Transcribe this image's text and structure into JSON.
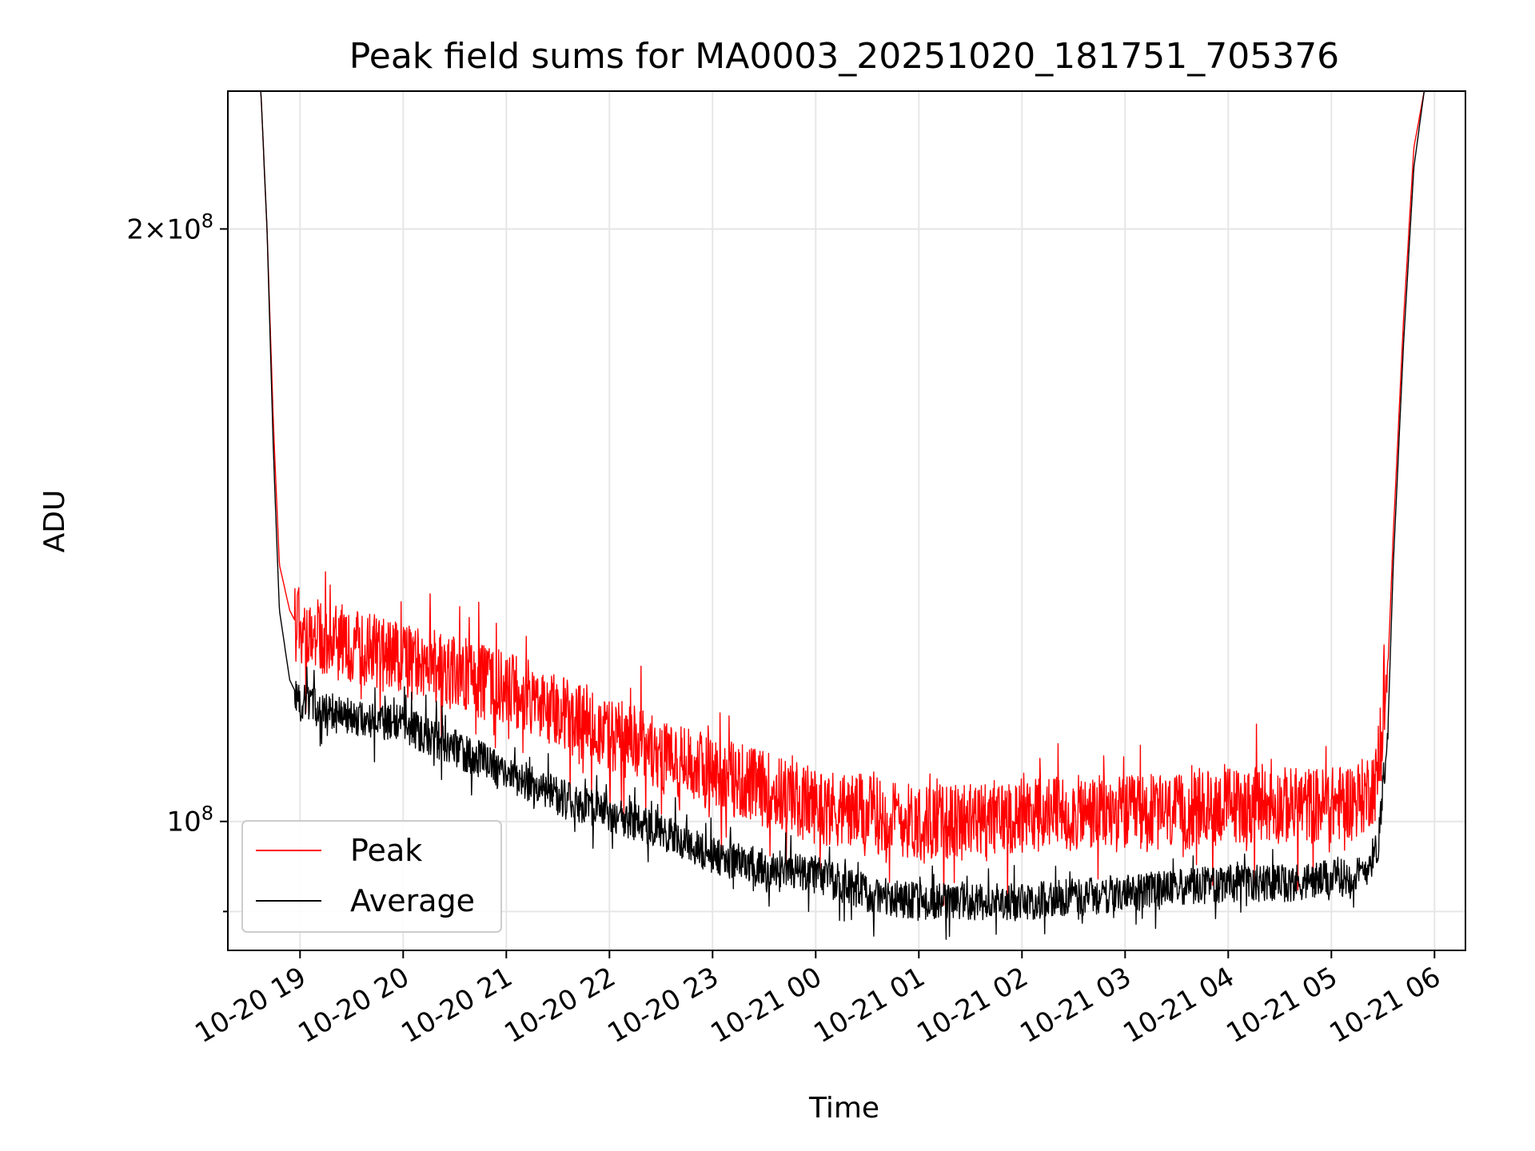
{
  "chart_data": {
    "type": "line",
    "title": "Peak field sums for MA0003_20251020_181751_705376",
    "xlabel": "Time",
    "ylabel": "ADU",
    "yscale": "log",
    "ylim": [
      86000000,
      235000000
    ],
    "xlim_hours": [
      18.3,
      30.3
    ],
    "x_ticks": [
      {
        "hour": 19,
        "label": "10-20 19"
      },
      {
        "hour": 20,
        "label": "10-20 20"
      },
      {
        "hour": 21,
        "label": "10-20 21"
      },
      {
        "hour": 22,
        "label": "10-20 22"
      },
      {
        "hour": 23,
        "label": "10-20 23"
      },
      {
        "hour": 24,
        "label": "10-21 00"
      },
      {
        "hour": 25,
        "label": "10-21 01"
      },
      {
        "hour": 26,
        "label": "10-21 02"
      },
      {
        "hour": 27,
        "label": "10-21 03"
      },
      {
        "hour": 28,
        "label": "10-21 04"
      },
      {
        "hour": 29,
        "label": "10-21 05"
      },
      {
        "hour": 30,
        "label": "10-21 06"
      }
    ],
    "y_ticks": [
      {
        "value": 100000000,
        "base": "10",
        "exp": "8",
        "mantissa": ""
      },
      {
        "value": 200000000,
        "base": "10",
        "exp": "8",
        "mantissa": "2×"
      }
    ],
    "y_minor_ticks": [
      90000000
    ],
    "legend": {
      "location": "lower left",
      "entries": [
        "Peak",
        "Average"
      ]
    },
    "series": [
      {
        "name": "Peak",
        "color": "#ff0000",
        "x_hours": [
          18.3,
          18.62,
          18.68,
          18.74,
          18.8,
          18.9,
          19.0,
          19.5,
          20.0,
          20.5,
          21.0,
          21.5,
          22.0,
          22.5,
          23.0,
          23.5,
          24.0,
          24.5,
          25.0,
          25.5,
          26.0,
          26.5,
          27.0,
          27.5,
          28.0,
          28.5,
          29.0,
          29.3,
          29.45,
          29.55,
          29.6,
          29.7,
          29.8,
          29.9,
          30.3
        ],
        "values": [
          235000000,
          235000000,
          200000000,
          160000000,
          135000000,
          128000000,
          125000000,
          123000000,
          121000000,
          119000000,
          117000000,
          114000000,
          111000000,
          108000000,
          106000000,
          104000000,
          102000000,
          101000000,
          100000000,
          100000000,
          101000000,
          101000000,
          101000000,
          101000000,
          102000000,
          102000000,
          102000000,
          103000000,
          105000000,
          120000000,
          140000000,
          180000000,
          220000000,
          235000000,
          235000000
        ],
        "noise_amplitude": 0.045
      },
      {
        "name": "Average",
        "color": "#000000",
        "x_hours": [
          18.3,
          18.62,
          18.68,
          18.74,
          18.8,
          18.9,
          19.0,
          19.5,
          20.0,
          20.5,
          21.0,
          21.5,
          22.0,
          22.5,
          23.0,
          23.5,
          24.0,
          24.5,
          25.0,
          25.5,
          26.0,
          26.5,
          27.0,
          27.5,
          28.0,
          28.5,
          29.0,
          29.3,
          29.45,
          29.55,
          29.6,
          29.7,
          29.8,
          29.9,
          30.3
        ],
        "values": [
          235000000,
          235000000,
          200000000,
          155000000,
          128000000,
          118000000,
          115000000,
          113000000,
          112000000,
          109000000,
          106000000,
          103000000,
          101000000,
          99000000,
          96000000,
          95000000,
          94000000,
          92000000,
          91000000,
          91000000,
          91000000,
          91500000,
          92000000,
          92500000,
          93000000,
          93000000,
          93500000,
          94000000,
          97000000,
          112000000,
          135000000,
          175000000,
          215000000,
          235000000,
          235000000
        ],
        "noise_amplitude": 0.022
      }
    ]
  }
}
